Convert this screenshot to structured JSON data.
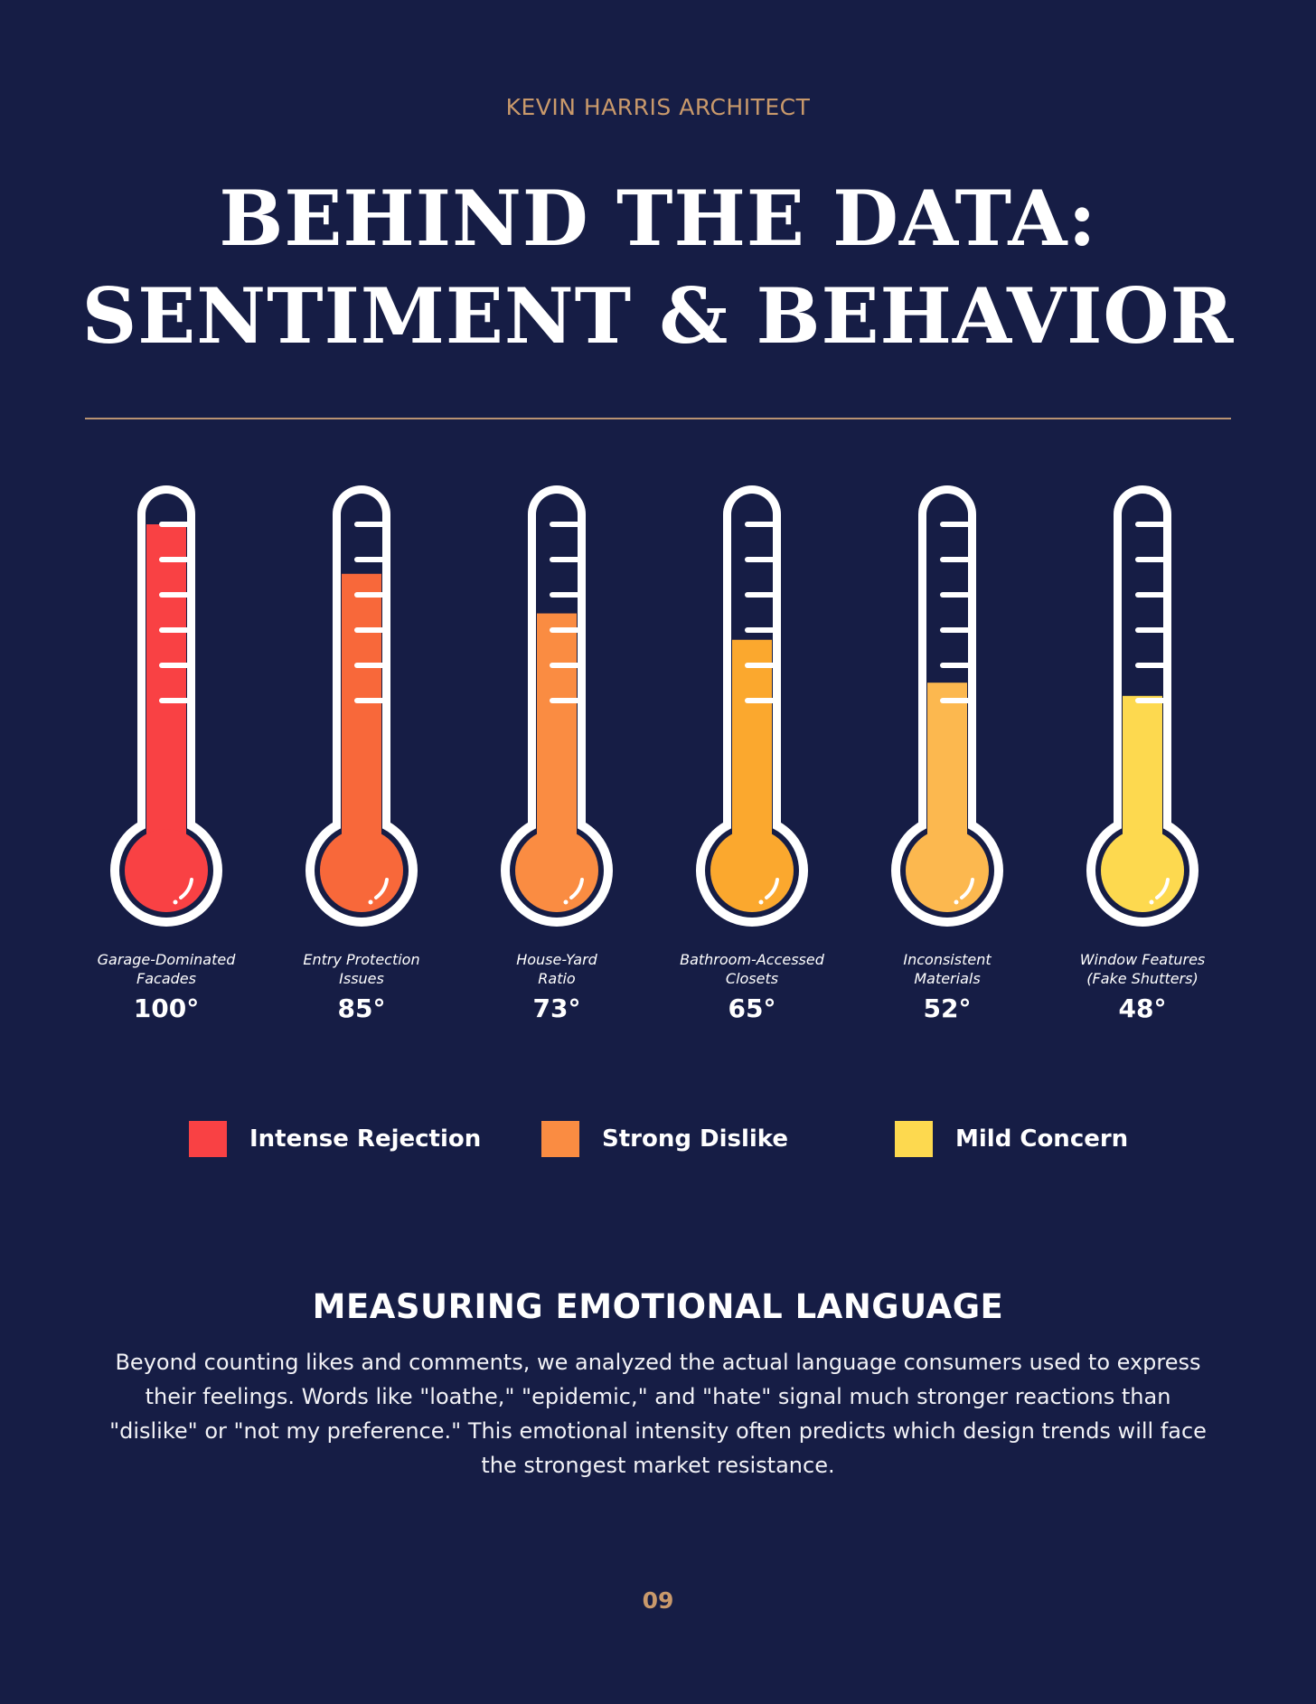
{
  "header": {
    "brand": "KEVIN HARRIS ARCHITECT",
    "title_line1": "BEHIND THE DATA:",
    "title_line2": "SENTIMENT & BEHAVIOR"
  },
  "chart_data": {
    "type": "bar",
    "style": "thermometer",
    "categories": [
      "Garage-Dominated Facades",
      "Entry Protection Issues",
      "House-Yard Ratio",
      "Bathroom-Accessed Closets",
      "Inconsistent Materials",
      "Window Features (Fake Shutters)"
    ],
    "category_lines": [
      [
        "Garage-Dominated",
        "Facades"
      ],
      [
        "Entry Protection",
        "Issues"
      ],
      [
        "House-Yard",
        "Ratio"
      ],
      [
        "Bathroom-Accessed",
        "Closets"
      ],
      [
        "Inconsistent",
        "Materials"
      ],
      [
        "Window Features",
        "(Fake Shutters)"
      ]
    ],
    "values": [
      100,
      85,
      73,
      65,
      52,
      48
    ],
    "value_labels": [
      "100°",
      "85°",
      "73°",
      "65°",
      "52°",
      "48°"
    ],
    "unit": "°",
    "ylim": [
      0,
      100
    ],
    "colors": [
      "#f94144",
      "#f8683a",
      "#fa8c42",
      "#fba82e",
      "#fcb84f",
      "#fdd94f"
    ],
    "legend": [
      {
        "label": "Intense Rejection",
        "color": "#f94144"
      },
      {
        "label": "Strong Dislike",
        "color": "#fa8c42"
      },
      {
        "label": "Mild Concern",
        "color": "#fdd94f"
      }
    ]
  },
  "section": {
    "heading": "MEASURING EMOTIONAL LANGUAGE",
    "body": "Beyond counting likes and comments, we analyzed the actual language consumers used to express their feelings. Words like \"loathe,\" \"epidemic,\" and \"hate\" signal much stronger reactions than \"dislike\" or \"not my preference.\" This emotional intensity often predicts which design trends will face the strongest market resistance."
  },
  "footer": {
    "page_number": "09"
  },
  "colors": {
    "background": "#161d45",
    "accent": "#c9996b",
    "text": "#ffffff"
  }
}
